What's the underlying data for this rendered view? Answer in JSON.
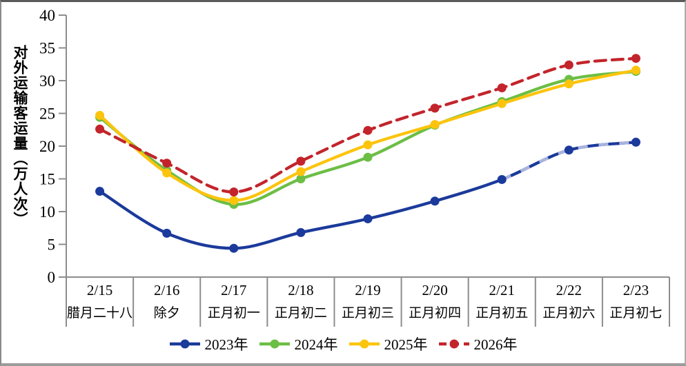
{
  "chart_data": {
    "type": "line",
    "title": "",
    "ylabel": "对外运输客运量（万人次）",
    "xlabel": "",
    "ylim": [
      0,
      40
    ],
    "y_ticks": [
      0,
      5,
      10,
      15,
      20,
      25,
      30,
      35,
      40
    ],
    "grid": false,
    "legend_position": "bottom",
    "categories": [
      "2/15",
      "2/16",
      "2/17",
      "2/18",
      "2/19",
      "2/20",
      "2/21",
      "2/22",
      "2/23"
    ],
    "category_sublabels": [
      "腊月二十八",
      "除夕",
      "正月初一",
      "正月初二",
      "正月初三",
      "正月初四",
      "正月初五",
      "正月初六",
      "正月初七"
    ],
    "series": [
      {
        "name": "2023年",
        "color": "#1B3A9B",
        "style": "solid",
        "values": [
          13.1,
          6.7,
          4.4,
          6.8,
          8.9,
          11.6,
          14.9,
          19.4,
          20.6
        ],
        "overlay": {
          "color": "#A8B4DE",
          "from_index": 6,
          "dash": "14 16"
        }
      },
      {
        "name": "2024年",
        "color": "#6CBE45",
        "style": "solid",
        "values": [
          24.4,
          16.3,
          11.1,
          15.0,
          18.3,
          23.2,
          26.8,
          30.2,
          31.4
        ]
      },
      {
        "name": "2025年",
        "color": "#FCC40D",
        "style": "solid",
        "values": [
          24.7,
          15.9,
          11.7,
          16.1,
          20.2,
          23.3,
          26.5,
          29.5,
          31.6
        ]
      },
      {
        "name": "2026年",
        "color": "#C3242B",
        "style": "dashed",
        "values": [
          22.6,
          17.4,
          13.0,
          17.7,
          22.4,
          25.8,
          28.9,
          32.4,
          33.4
        ]
      }
    ],
    "axis_color": "#8c8c8c",
    "text_color": "#000000"
  }
}
